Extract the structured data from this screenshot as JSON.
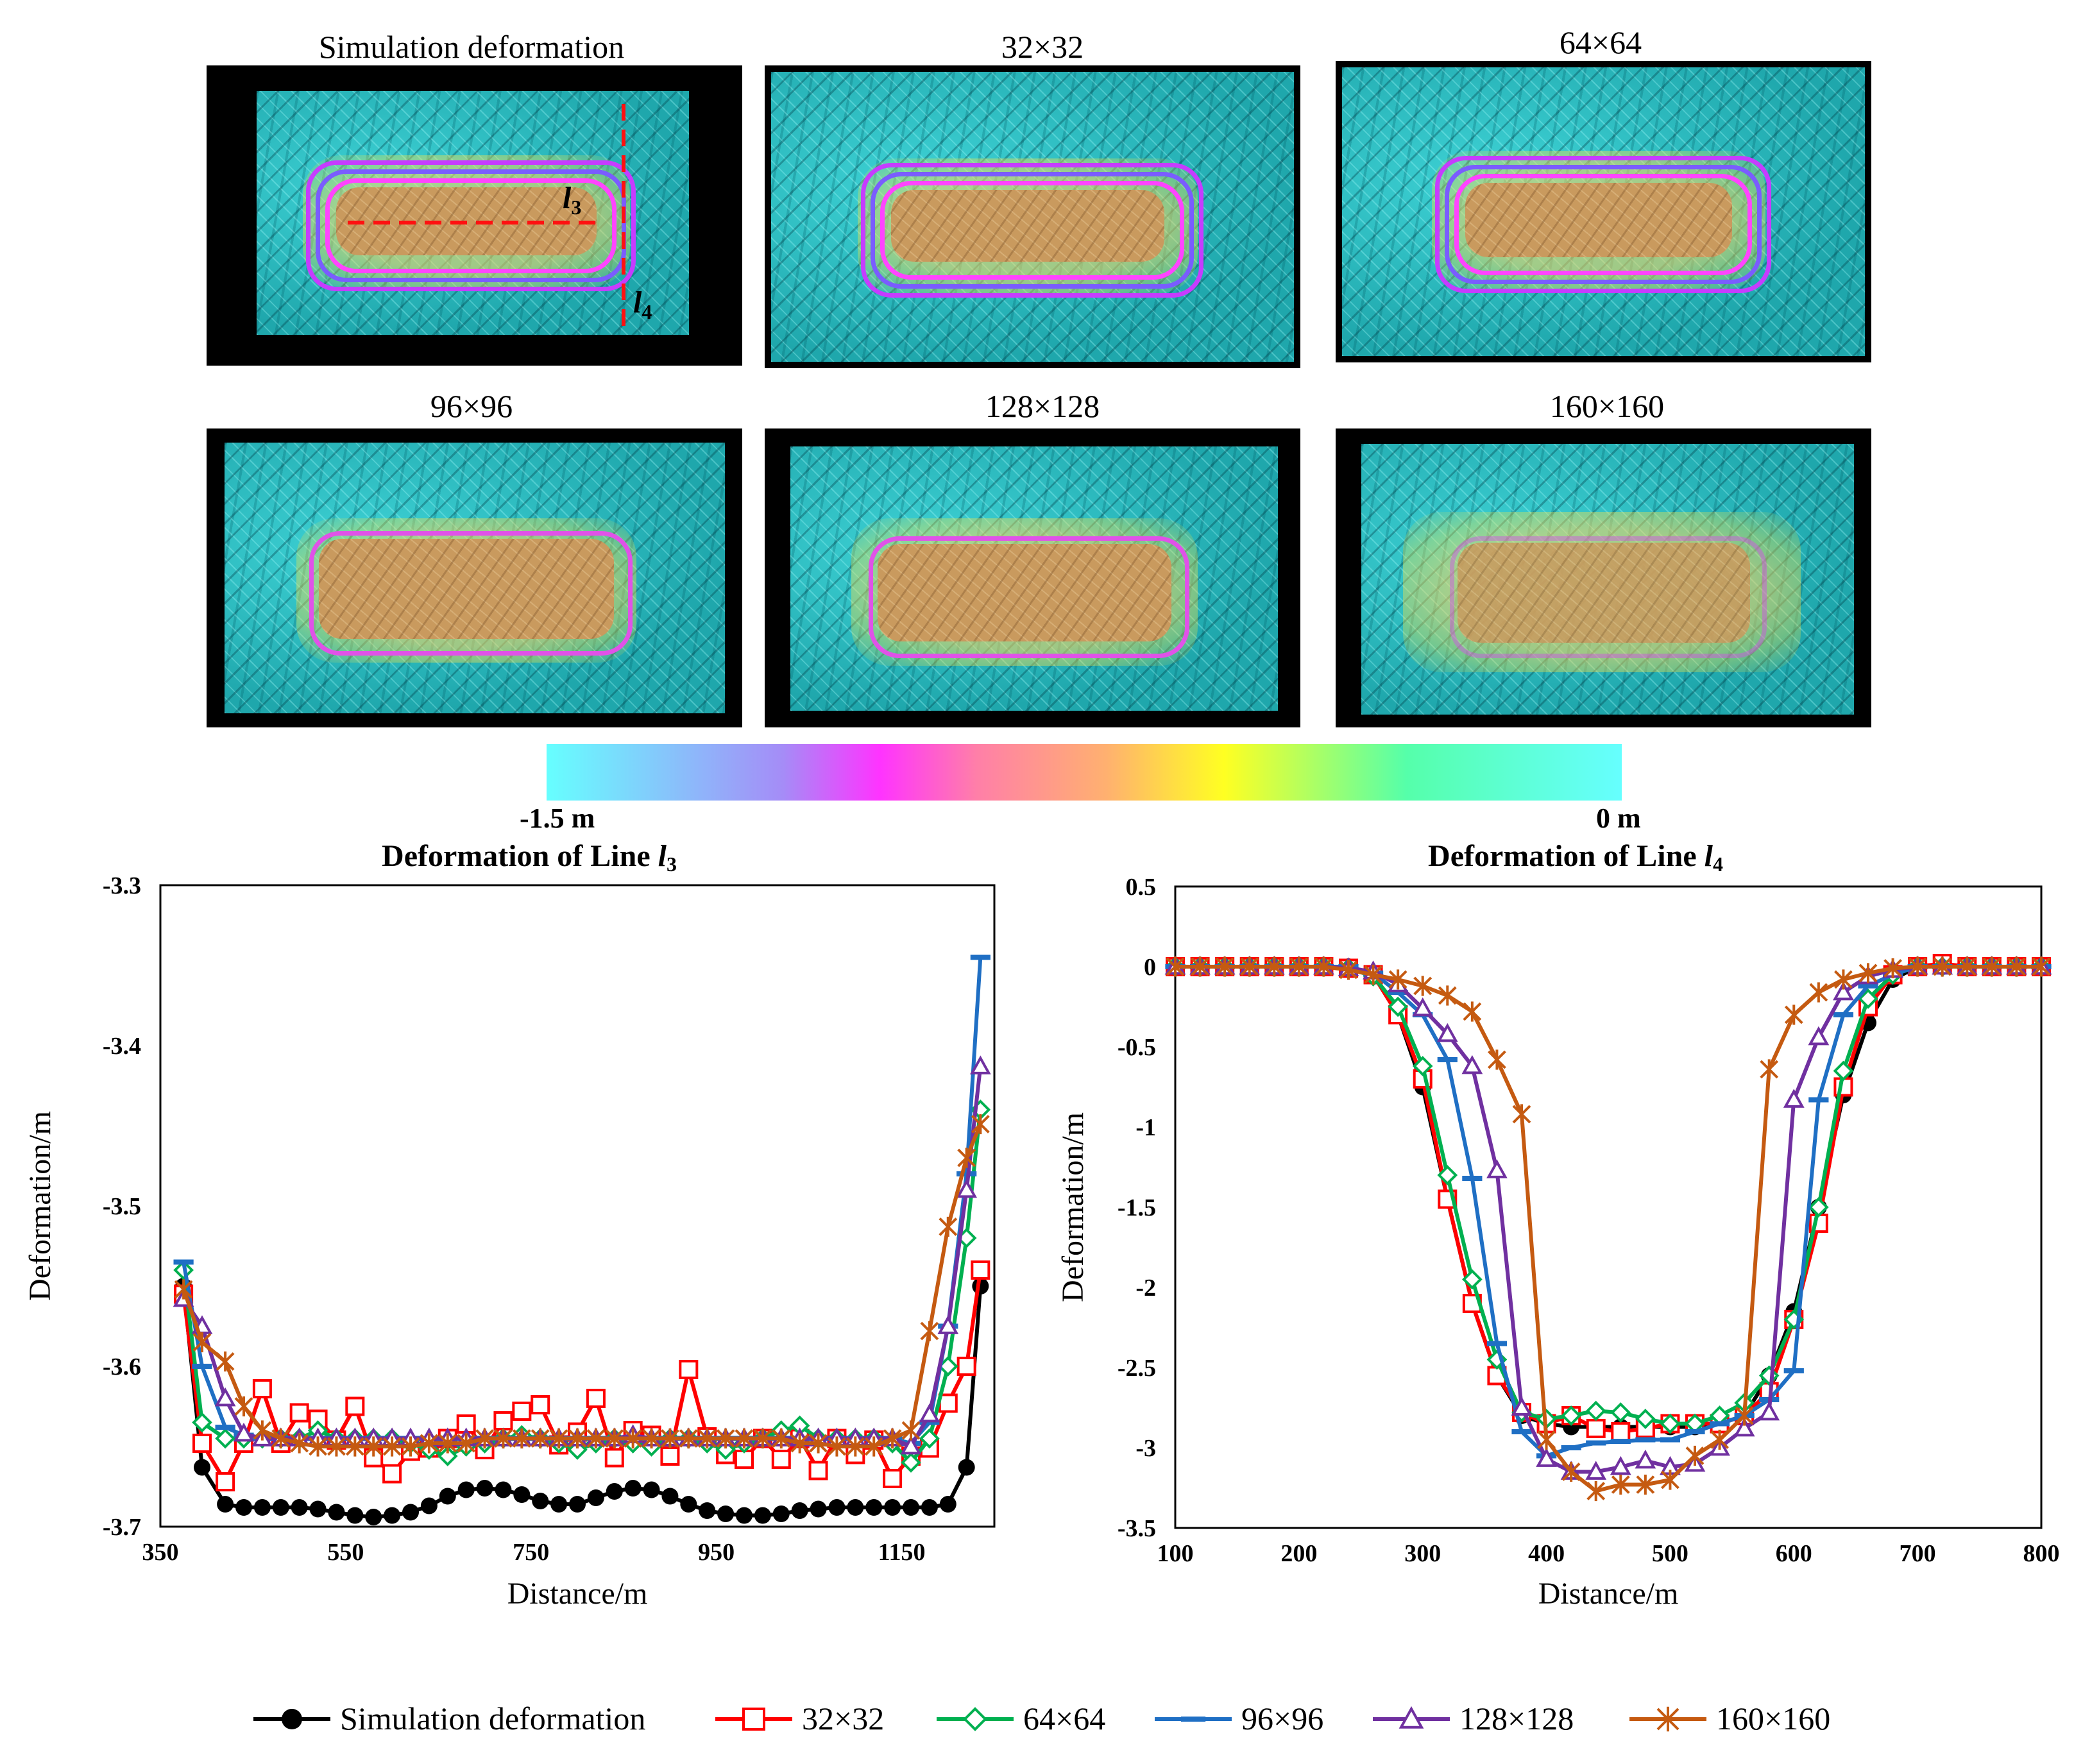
{
  "maps": {
    "panels": [
      {
        "title": "Simulation deformation"
      },
      {
        "title": "32×32"
      },
      {
        "title": "64×64"
      },
      {
        "title": "96×96"
      },
      {
        "title": "128×128"
      },
      {
        "title": "160×160"
      }
    ],
    "line_labels": {
      "l3": "l",
      "l3_sub": "3",
      "l4": "l",
      "l4_sub": "4"
    },
    "colorbar": {
      "min_label": "-1.5 m",
      "max_label": "0 m",
      "colors": [
        "#66ffff",
        "#a58cf7",
        "#ff33ff",
        "#ffb070",
        "#ffff22",
        "#55ffaa",
        "#66ffff"
      ]
    }
  },
  "chart_data": [
    {
      "type": "line",
      "title": "Deformation of Line ",
      "title_var": "l",
      "title_sub": "3",
      "xlabel": "Distance/m",
      "ylabel": "Deformation/m",
      "xlim": [
        350,
        1250
      ],
      "ylim": [
        -3.7,
        -3.3
      ],
      "xticks": [
        350,
        550,
        750,
        950,
        1150
      ],
      "yticks": [
        -3.7,
        -3.6,
        -3.5,
        -3.4,
        -3.3
      ],
      "x": [
        375,
        395,
        420,
        440,
        460,
        480,
        500,
        520,
        540,
        560,
        580,
        600,
        620,
        640,
        660,
        680,
        700,
        720,
        740,
        760,
        780,
        800,
        820,
        840,
        860,
        880,
        900,
        920,
        940,
        960,
        980,
        1000,
        1020,
        1040,
        1060,
        1080,
        1100,
        1120,
        1140,
        1160,
        1180,
        1200,
        1220,
        1235
      ],
      "series": [
        {
          "name": "Simulation deformation",
          "color": "#000000",
          "marker": "dot",
          "values": [
            -3.55,
            -3.663,
            -3.686,
            -3.688,
            -3.688,
            -3.688,
            -3.688,
            -3.689,
            -3.691,
            -3.693,
            -3.694,
            -3.693,
            -3.691,
            -3.687,
            -3.681,
            -3.677,
            -3.676,
            -3.677,
            -3.68,
            -3.684,
            -3.686,
            -3.686,
            -3.682,
            -3.678,
            -3.676,
            -3.677,
            -3.681,
            -3.686,
            -3.69,
            -3.692,
            -3.693,
            -3.693,
            -3.692,
            -3.69,
            -3.689,
            -3.688,
            -3.688,
            -3.688,
            -3.688,
            -3.688,
            -3.688,
            -3.686,
            -3.663,
            -3.55
          ]
        },
        {
          "name": "32×32",
          "color": "#ff0000",
          "marker": "square",
          "values": [
            -3.555,
            -3.648,
            -3.672,
            -3.648,
            -3.614,
            -3.648,
            -3.629,
            -3.633,
            -3.646,
            -3.625,
            -3.657,
            -3.667,
            -3.653,
            -3.651,
            -3.645,
            -3.636,
            -3.652,
            -3.634,
            -3.628,
            -3.624,
            -3.649,
            -3.641,
            -3.62,
            -3.657,
            -3.64,
            -3.643,
            -3.656,
            -3.602,
            -3.644,
            -3.655,
            -3.658,
            -3.645,
            -3.658,
            -3.645,
            -3.665,
            -3.645,
            -3.655,
            -3.646,
            -3.67,
            -3.656,
            -3.651,
            -3.623,
            -3.6,
            -3.54
          ]
        },
        {
          "name": "64×64",
          "color": "#00b050",
          "marker": "diamond",
          "values": [
            -3.54,
            -3.635,
            -3.645,
            -3.645,
            -3.645,
            -3.645,
            -3.645,
            -3.64,
            -3.645,
            -3.645,
            -3.645,
            -3.645,
            -3.648,
            -3.652,
            -3.656,
            -3.65,
            -3.648,
            -3.645,
            -3.643,
            -3.645,
            -3.648,
            -3.652,
            -3.648,
            -3.645,
            -3.648,
            -3.65,
            -3.645,
            -3.645,
            -3.648,
            -3.652,
            -3.648,
            -3.645,
            -3.64,
            -3.637,
            -3.645,
            -3.645,
            -3.645,
            -3.645,
            -3.648,
            -3.66,
            -3.645,
            -3.6,
            -3.52,
            -3.44
          ]
        },
        {
          "name": "96×96",
          "color": "#1f6fc4",
          "marker": "dash",
          "values": [
            -3.535,
            -3.6,
            -3.638,
            -3.643,
            -3.645,
            -3.645,
            -3.645,
            -3.645,
            -3.645,
            -3.645,
            -3.645,
            -3.645,
            -3.645,
            -3.645,
            -3.645,
            -3.645,
            -3.645,
            -3.645,
            -3.645,
            -3.645,
            -3.645,
            -3.645,
            -3.645,
            -3.645,
            -3.645,
            -3.645,
            -3.645,
            -3.645,
            -3.645,
            -3.645,
            -3.645,
            -3.645,
            -3.645,
            -3.645,
            -3.645,
            -3.645,
            -3.645,
            -3.645,
            -3.645,
            -3.648,
            -3.635,
            -3.575,
            -3.48,
            -3.345
          ]
        },
        {
          "name": "128×128",
          "color": "#7030a0",
          "marker": "triangle",
          "values": [
            -3.558,
            -3.575,
            -3.62,
            -3.642,
            -3.645,
            -3.645,
            -3.645,
            -3.645,
            -3.645,
            -3.645,
            -3.645,
            -3.645,
            -3.645,
            -3.645,
            -3.645,
            -3.645,
            -3.645,
            -3.645,
            -3.645,
            -3.645,
            -3.645,
            -3.645,
            -3.645,
            -3.645,
            -3.643,
            -3.645,
            -3.645,
            -3.645,
            -3.645,
            -3.645,
            -3.645,
            -3.645,
            -3.645,
            -3.645,
            -3.645,
            -3.645,
            -3.645,
            -3.645,
            -3.645,
            -3.65,
            -3.63,
            -3.575,
            -3.49,
            -3.413
          ]
        },
        {
          "name": "160×160",
          "color": "#c55a11",
          "marker": "star",
          "values": [
            -3.552,
            -3.585,
            -3.597,
            -3.625,
            -3.64,
            -3.645,
            -3.648,
            -3.65,
            -3.65,
            -3.65,
            -3.65,
            -3.65,
            -3.65,
            -3.648,
            -3.648,
            -3.648,
            -3.645,
            -3.645,
            -3.645,
            -3.645,
            -3.645,
            -3.645,
            -3.645,
            -3.645,
            -3.645,
            -3.645,
            -3.645,
            -3.645,
            -3.645,
            -3.645,
            -3.645,
            -3.645,
            -3.645,
            -3.648,
            -3.648,
            -3.65,
            -3.65,
            -3.65,
            -3.645,
            -3.64,
            -3.578,
            -3.513,
            -3.47,
            -3.449
          ]
        }
      ]
    },
    {
      "type": "line",
      "title": "Deformation of Line ",
      "title_var": "l",
      "title_sub": "4",
      "xlabel": "Distance/m",
      "ylabel": "Deformation/m",
      "xlim": [
        100,
        800
      ],
      "ylim": [
        -3.5,
        0.5
      ],
      "xticks": [
        100,
        200,
        300,
        400,
        500,
        600,
        700,
        800
      ],
      "yticks": [
        -3.5,
        -3,
        -2.5,
        -2,
        -1.5,
        -1,
        -0.5,
        0,
        0.5
      ],
      "x": [
        100,
        120,
        140,
        160,
        180,
        200,
        220,
        240,
        260,
        280,
        300,
        320,
        340,
        360,
        380,
        400,
        420,
        440,
        460,
        480,
        500,
        520,
        540,
        560,
        580,
        600,
        620,
        640,
        660,
        680,
        700,
        720,
        740,
        760,
        780,
        800
      ],
      "series": [
        {
          "name": "Simulation deformation",
          "color": "#000000",
          "marker": "dot",
          "values": [
            0,
            0,
            0,
            0,
            0,
            0,
            0,
            0,
            -0.05,
            -0.3,
            -0.75,
            -1.45,
            -2.1,
            -2.55,
            -2.8,
            -2.85,
            -2.87,
            -2.87,
            -2.87,
            -2.87,
            -2.87,
            -2.87,
            -2.85,
            -2.8,
            -2.55,
            -2.15,
            -1.5,
            -0.8,
            -0.35,
            -0.08,
            0,
            0,
            0,
            0,
            0,
            0
          ]
        },
        {
          "name": "32×32",
          "color": "#ff0000",
          "marker": "square",
          "values": [
            0,
            0,
            0,
            0,
            0,
            0,
            0,
            -0.01,
            -0.05,
            -0.3,
            -0.7,
            -1.45,
            -2.1,
            -2.55,
            -2.78,
            -2.85,
            -2.8,
            -2.88,
            -2.9,
            -2.88,
            -2.85,
            -2.85,
            -2.85,
            -2.8,
            -2.65,
            -2.2,
            -1.6,
            -0.75,
            -0.25,
            -0.05,
            0,
            0.02,
            0,
            0,
            0,
            0
          ]
        },
        {
          "name": "64×64",
          "color": "#00b050",
          "marker": "diamond",
          "values": [
            0,
            0,
            0,
            0,
            0,
            0,
            0,
            -0.01,
            -0.06,
            -0.25,
            -0.62,
            -1.3,
            -1.95,
            -2.45,
            -2.78,
            -2.82,
            -2.8,
            -2.77,
            -2.78,
            -2.82,
            -2.85,
            -2.85,
            -2.8,
            -2.72,
            -2.55,
            -2.2,
            -1.5,
            -0.65,
            -0.2,
            -0.05,
            0,
            0,
            0,
            0,
            0,
            0
          ]
        },
        {
          "name": "96×96",
          "color": "#1f6fc4",
          "marker": "dash",
          "values": [
            0,
            0,
            0,
            0,
            0,
            0,
            0,
            0,
            -0.04,
            -0.16,
            -0.3,
            -0.58,
            -1.32,
            -2.35,
            -2.9,
            -3.05,
            -3.0,
            -2.97,
            -2.96,
            -2.95,
            -2.95,
            -2.9,
            -2.85,
            -2.8,
            -2.7,
            -2.52,
            -0.83,
            -0.3,
            -0.12,
            -0.05,
            0,
            0,
            0,
            0,
            0,
            0
          ]
        },
        {
          "name": "128×128",
          "color": "#7030a0",
          "marker": "triangle",
          "values": [
            0,
            0,
            0,
            0,
            0,
            0,
            0,
            -0.01,
            -0.03,
            -0.11,
            -0.26,
            -0.42,
            -0.62,
            -1.27,
            -2.75,
            -3.07,
            -3.15,
            -3.15,
            -3.12,
            -3.08,
            -3.12,
            -3.1,
            -3.0,
            -2.88,
            -2.78,
            -0.83,
            -0.44,
            -0.16,
            -0.06,
            -0.02,
            0,
            0,
            0,
            0,
            0,
            0
          ]
        },
        {
          "name": "160×160",
          "color": "#c55a11",
          "marker": "star",
          "values": [
            0,
            0,
            0,
            0,
            0,
            0,
            0,
            -0.02,
            -0.05,
            -0.08,
            -0.12,
            -0.18,
            -0.28,
            -0.58,
            -0.92,
            -2.95,
            -3.15,
            -3.27,
            -3.23,
            -3.23,
            -3.2,
            -3.05,
            -2.95,
            -2.8,
            -0.64,
            -0.3,
            -0.16,
            -0.08,
            -0.04,
            -0.01,
            0,
            0,
            0,
            0,
            0,
            0
          ]
        }
      ]
    }
  ],
  "legend": {
    "items": [
      "Simulation deformation",
      "32×32",
      "64×64",
      "96×96",
      "128×128",
      "160×160"
    ]
  }
}
